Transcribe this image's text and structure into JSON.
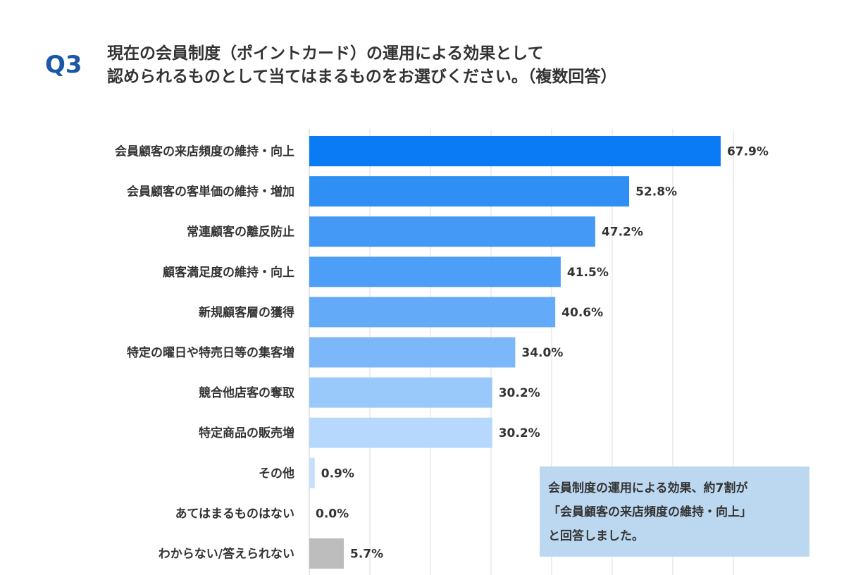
{
  "header": {
    "q_label": "Q3",
    "title_lines": [
      "現在の会員制度（ポイントカード）の運用による効果として",
      "認められるものとして当てはまるものをお選びください。（複数回答）"
    ]
  },
  "chart_data": {
    "type": "bar",
    "orientation": "horizontal",
    "categories": [
      "会員顧客の来店頻度の維持・向上",
      "会員顧客の客単価の維持・増加",
      "常連顧客の離反防止",
      "顧客満足度の維持・向上",
      "新規顧客層の獲得",
      "特定の曜日や特売日等の集客増",
      "競合他店客の奪取",
      "特定商品の販売増",
      "その他",
      "あてはまるものはない",
      "わからない/答えられない"
    ],
    "values": [
      67.9,
      52.8,
      47.2,
      41.5,
      40.6,
      34.0,
      30.2,
      30.2,
      0.9,
      0.0,
      5.7
    ],
    "value_labels": [
      "67.9%",
      "52.8%",
      "47.2%",
      "41.5%",
      "40.6%",
      "34.0%",
      "30.2%",
      "30.2%",
      "0.9%",
      "0.0%",
      "5.7%"
    ],
    "bar_colors": [
      "#0a7bf5",
      "#2f8ff5",
      "#4499f6",
      "#4d9ef7",
      "#63aaf8",
      "#7cb8f9",
      "#99c9fb",
      "#b6d8fc",
      "#c6e0fb",
      "#c6e0fb",
      "#bdbdbd"
    ],
    "xlim": [
      0,
      70
    ],
    "grid": true,
    "axis_labels_shown": false
  },
  "note": {
    "lines": [
      "会員制度の運用による効果、約7割が",
      "「会員顧客の来店頻度の維持・向上」",
      "と回答しました。"
    ]
  }
}
